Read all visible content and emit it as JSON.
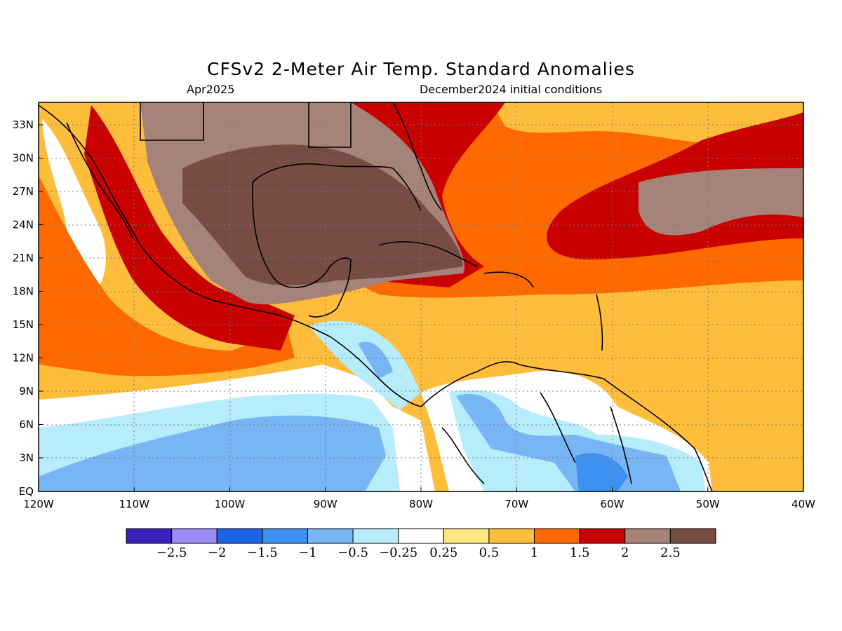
{
  "title": "CFSv2 2-Meter Air Temp. Standard Anomalies",
  "valid_month": "Apr2025",
  "initial_conditions": "December2024 initial conditions",
  "map": {
    "lat_labels": [
      "33N",
      "30N",
      "27N",
      "24N",
      "21N",
      "18N",
      "15N",
      "12N",
      "9N",
      "6N",
      "3N",
      "EQ"
    ],
    "lon_labels": [
      "120W",
      "110W",
      "100W",
      "90W",
      "80W",
      "70W",
      "60W",
      "50W",
      "40W"
    ]
  },
  "colorbar": {
    "labels": [
      "-2.5",
      "-2",
      "-1.5",
      "-1",
      "-0.5",
      "-0.25",
      "0.25",
      "0.5",
      "1",
      "1.5",
      "2",
      "2.5"
    ],
    "colors": [
      "#3b22b8",
      "#9d8cf5",
      "#1f63e6",
      "#3d8ff0",
      "#78b5f4",
      "#b7ecfa",
      "#ffffff",
      "#ffe680",
      "#ffbd3c",
      "#ff6a00",
      "#c80000",
      "#a58379",
      "#774c43"
    ]
  }
}
